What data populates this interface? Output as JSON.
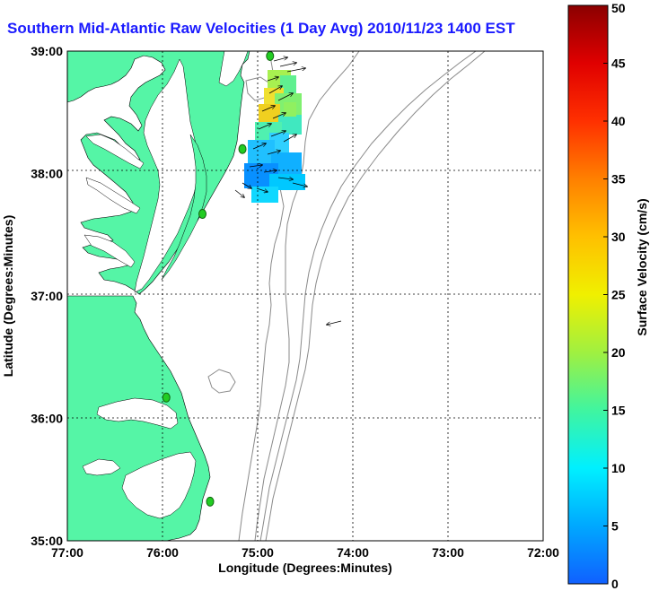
{
  "title": "Southern Mid-Atlantic Raw Velocities (1 Day Avg) 2010/11/23 1400 EST",
  "xlabel": "Longitude (Degrees:Minutes)",
  "ylabel": "Latitude (Degrees:Minutes)",
  "x_ticks": [
    "77:00",
    "76:00",
    "75:00",
    "74:00",
    "73:00",
    "72:00"
  ],
  "y_ticks": [
    "39:00",
    "38:00",
    "37:00",
    "36:00",
    "35:00"
  ],
  "colorbar": {
    "label": "Surface Velocity (cm/s)",
    "min": 0,
    "max": 50,
    "ticks": [
      "0",
      "5",
      "10",
      "15",
      "20",
      "25",
      "30",
      "35",
      "40",
      "45",
      "50"
    ]
  },
  "colors": {
    "land": "#55f5a6",
    "title": "#1a1aff",
    "grid": "#000000",
    "isobath": "#8a8a8a",
    "station": "#22cc22"
  },
  "stations": [
    {
      "lon": -74.87,
      "lat": 38.96
    },
    {
      "lon": -75.16,
      "lat": 38.2
    },
    {
      "lon": -75.58,
      "lat": 37.67
    },
    {
      "lon": -75.96,
      "lat": 36.17
    },
    {
      "lon": -75.5,
      "lat": 35.32
    }
  ]
}
